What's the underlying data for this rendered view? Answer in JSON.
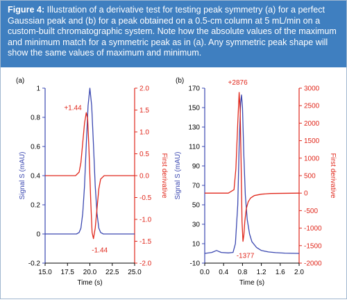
{
  "caption": {
    "label": "Figure 4:",
    "text": " Illustration of a derivative test for testing peak symmetry (a) for a perfect Gaussian peak and (b) for a peak obtained on a 0.5-cm column at 5 mL/min on a custom-built chromatographic system. Note how the absolute values of the maximum and minimum match for a symmetric peak as in (a). Any symmetric peak shape will show the same values of maximum and minimum."
  },
  "colors": {
    "signal": "#3a47b0",
    "derivative": "#e0261a",
    "caption_bg": "#3f7fc0"
  },
  "chart_data": [
    {
      "type": "line",
      "panel_label": "(a)",
      "xlabel": "Time (s)",
      "ylabel_left": "Signal S (mAU)",
      "ylabel_right": "First derivative",
      "xlim": [
        15.0,
        25.0
      ],
      "xticks": [
        "15.0",
        "17.5",
        "20.0",
        "22.5",
        "25.0"
      ],
      "ylim_left": [
        -0.2,
        1.0
      ],
      "yticks_left": [
        "-0.2",
        "0",
        "0.2",
        "0.4",
        "0.6",
        "0.8",
        "1"
      ],
      "ylim_right": [
        -2.0,
        2.0
      ],
      "yticks_right": [
        "-2.0",
        "-1.5",
        "-1.0",
        "-0.5",
        "0.0",
        "0.5",
        "1.0",
        "1.5",
        "2.0"
      ],
      "series": [
        {
          "axis": "left",
          "color": "#3a47b0",
          "x": [
            15.0,
            18.5,
            18.8,
            19.0,
            19.2,
            19.4,
            19.6,
            19.8,
            20.0,
            20.2,
            20.4,
            20.6,
            20.8,
            21.0,
            21.2,
            21.5,
            25.0
          ],
          "y": [
            0.0,
            0.0,
            0.01,
            0.04,
            0.14,
            0.33,
            0.61,
            0.88,
            1.0,
            0.88,
            0.61,
            0.33,
            0.14,
            0.04,
            0.01,
            0.0,
            0.0
          ]
        },
        {
          "axis": "right",
          "color": "#e0261a",
          "x": [
            15.0,
            18.4,
            18.8,
            19.0,
            19.2,
            19.4,
            19.6,
            19.75,
            19.9,
            20.0,
            20.1,
            20.25,
            20.4,
            20.6,
            20.8,
            21.0,
            21.2,
            21.6,
            25.0
          ],
          "y": [
            0.0,
            0.0,
            0.08,
            0.3,
            0.75,
            1.2,
            1.44,
            1.3,
            0.6,
            0.0,
            -0.6,
            -1.3,
            -1.44,
            -1.2,
            -0.75,
            -0.3,
            -0.08,
            0.0,
            0.0
          ]
        }
      ],
      "annotations": [
        {
          "text": "+1.44",
          "x": 18.1,
          "y_right": 1.5,
          "color": "#e0261a"
        },
        {
          "text": "-1.44",
          "x": 21.1,
          "y_right": -1.75,
          "color": "#e0261a"
        }
      ]
    },
    {
      "type": "line",
      "panel_label": "(b)",
      "xlabel": "Time (s)",
      "ylabel_left": "Signal S (mAU)",
      "ylabel_right": "First derivative",
      "xlim": [
        0.0,
        2.0
      ],
      "xticks": [
        "0.0",
        "0.4",
        "0.8",
        "1.2",
        "1.6",
        "2.0"
      ],
      "ylim_left": [
        -10,
        170
      ],
      "yticks_left": [
        "-10",
        "10",
        "30",
        "50",
        "70",
        "90",
        "110",
        "130",
        "150",
        "170"
      ],
      "ylim_right": [
        -2000,
        3000
      ],
      "yticks_right": [
        "-2000",
        "-1500",
        "-1000",
        "-500",
        "0",
        "500",
        "1000",
        "1500",
        "2000",
        "2500",
        "3000"
      ],
      "series": [
        {
          "axis": "left",
          "color": "#3a47b0",
          "x": [
            0.0,
            0.15,
            0.25,
            0.35,
            0.5,
            0.6,
            0.65,
            0.7,
            0.73,
            0.76,
            0.78,
            0.8,
            0.83,
            0.86,
            0.9,
            0.95,
            1.0,
            1.1,
            1.2,
            1.35,
            1.5,
            1.7,
            2.0
          ],
          "y": [
            0.0,
            1.0,
            3.0,
            1.0,
            0.5,
            1.0,
            10.0,
            50.0,
            110.0,
            155.0,
            163.0,
            150.0,
            100.0,
            60.0,
            35.0,
            20.0,
            12.0,
            6.0,
            3.0,
            1.5,
            0.8,
            0.3,
            0.0
          ]
        },
        {
          "axis": "right",
          "color": "#e0261a",
          "x": [
            0.0,
            0.5,
            0.62,
            0.66,
            0.7,
            0.73,
            0.75,
            0.77,
            0.79,
            0.81,
            0.83,
            0.85,
            0.88,
            0.92,
            0.97,
            1.05,
            1.2,
            1.4,
            2.0
          ],
          "y": [
            0.0,
            0.0,
            100.0,
            700.0,
            2000.0,
            2876.0,
            2400.0,
            900.0,
            -800.0,
            -1377.0,
            -1200.0,
            -800.0,
            -450.0,
            -250.0,
            -140.0,
            -70.0,
            -30.0,
            -10.0,
            0.0
          ]
        }
      ],
      "annotations": [
        {
          "text": "+2876",
          "x": 0.7,
          "y_right": 3100,
          "color": "#e0261a"
        },
        {
          "text": "-1377",
          "x": 0.86,
          "y_right": -1850,
          "color": "#e0261a"
        }
      ]
    }
  ]
}
